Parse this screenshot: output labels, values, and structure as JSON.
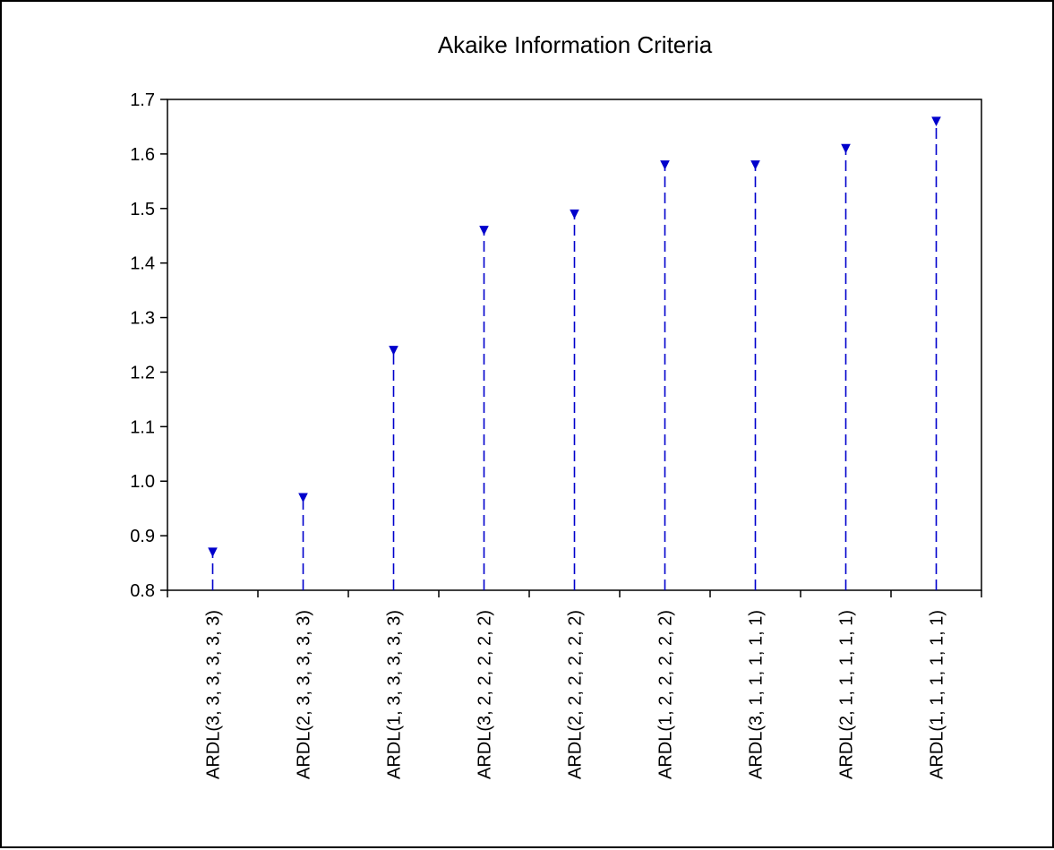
{
  "chart_data": {
    "type": "scatter",
    "title": "Akaike Information Criteria",
    "xlabel": "",
    "ylabel": "",
    "ylim": [
      0.8,
      1.7
    ],
    "yticks": [
      "0.8",
      "0.9",
      "1.0",
      "1.1",
      "1.2",
      "1.3",
      "1.4",
      "1.5",
      "1.6",
      "1.7"
    ],
    "categories": [
      "ARDL(3, 3, 3, 3, 3, 3)",
      "ARDL(2, 3, 3, 3, 3, 3)",
      "ARDL(1, 3, 3, 3, 3, 3)",
      "ARDL(3, 2, 2, 2, 2, 2)",
      "ARDL(2, 2, 2, 2, 2, 2)",
      "ARDL(1, 2, 2, 2, 2, 2)",
      "ARDL(3, 1, 1, 1, 1, 1)",
      "ARDL(2, 1, 1, 1, 1, 1)",
      "ARDL(1, 1, 1, 1, 1, 1)"
    ],
    "values": [
      0.87,
      0.97,
      1.24,
      1.46,
      1.49,
      1.58,
      1.58,
      1.61,
      1.66
    ],
    "grid": false,
    "legend": "none",
    "marker": "triangle-down",
    "line_style": "dashed-drop-line",
    "color": "#0000cc"
  }
}
